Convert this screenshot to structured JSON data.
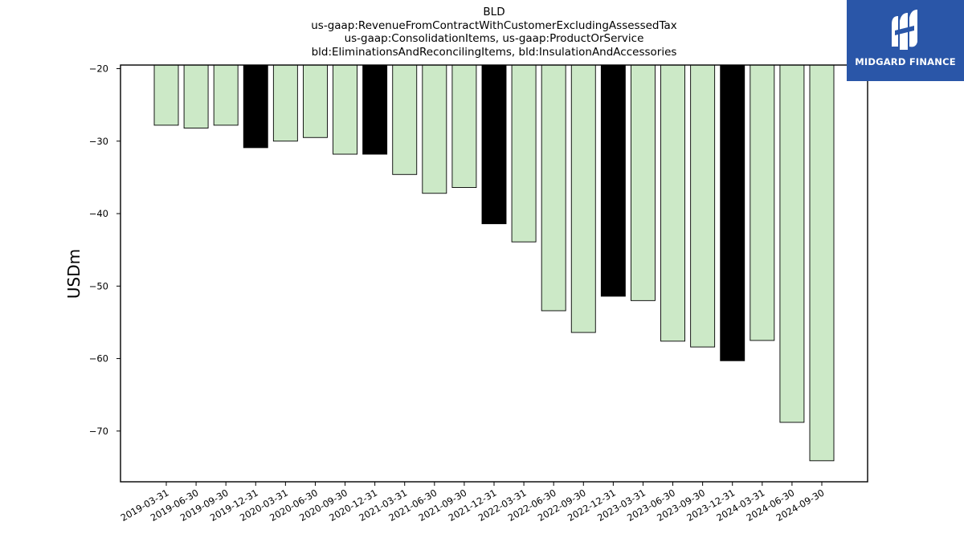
{
  "chart_data": {
    "type": "bar",
    "title_lines": [
      "BLD",
      "us-gaap:RevenueFromContractWithCustomerExcludingAssessedTax",
      "us-gaap:ConsolidationItems, us-gaap:ProductOrService",
      "bld:EliminationsAndReconcilingItems, bld:InsulationAndAccessories"
    ],
    "ylabel": "USDm",
    "xlabel": "",
    "ylim": [
      -77,
      -19.5
    ],
    "yticks": [
      -20,
      -30,
      -40,
      -50,
      -60,
      -70
    ],
    "yticklabels": [
      "−20",
      "−30",
      "−40",
      "−50",
      "−60",
      "−70"
    ],
    "categories": [
      "2019-03-31",
      "2019-06-30",
      "2019-09-30",
      "2019-12-31",
      "2020-03-31",
      "2020-06-30",
      "2020-09-30",
      "2020-12-31",
      "2021-03-31",
      "2021-06-30",
      "2021-09-30",
      "2021-12-31",
      "2022-03-31",
      "2022-06-30",
      "2022-09-30",
      "2022-12-31",
      "2023-03-31",
      "2023-06-30",
      "2023-09-30",
      "2023-12-31",
      "2024-03-31",
      "2024-06-30",
      "2024-09-30"
    ],
    "values": [
      -27.8,
      -28.2,
      -27.8,
      -30.9,
      -30.0,
      -29.5,
      -31.8,
      -31.8,
      -34.6,
      -37.2,
      -36.4,
      -41.4,
      -43.9,
      -53.4,
      -56.4,
      -51.4,
      -52.0,
      -57.6,
      -58.4,
      -60.3,
      -57.5,
      -68.8,
      -74.1
    ],
    "quarter_end_flags": [
      false,
      false,
      false,
      true,
      false,
      false,
      false,
      true,
      false,
      false,
      false,
      true,
      false,
      false,
      false,
      true,
      false,
      false,
      false,
      true,
      false,
      false,
      false
    ],
    "colors": {
      "bar": "#cce9c7",
      "highlight": "#000000",
      "edge": "#000000"
    },
    "grid": false,
    "legend": "none"
  },
  "logo": {
    "text": "MIDGARD FINANCE",
    "background": "#2a56a8"
  }
}
